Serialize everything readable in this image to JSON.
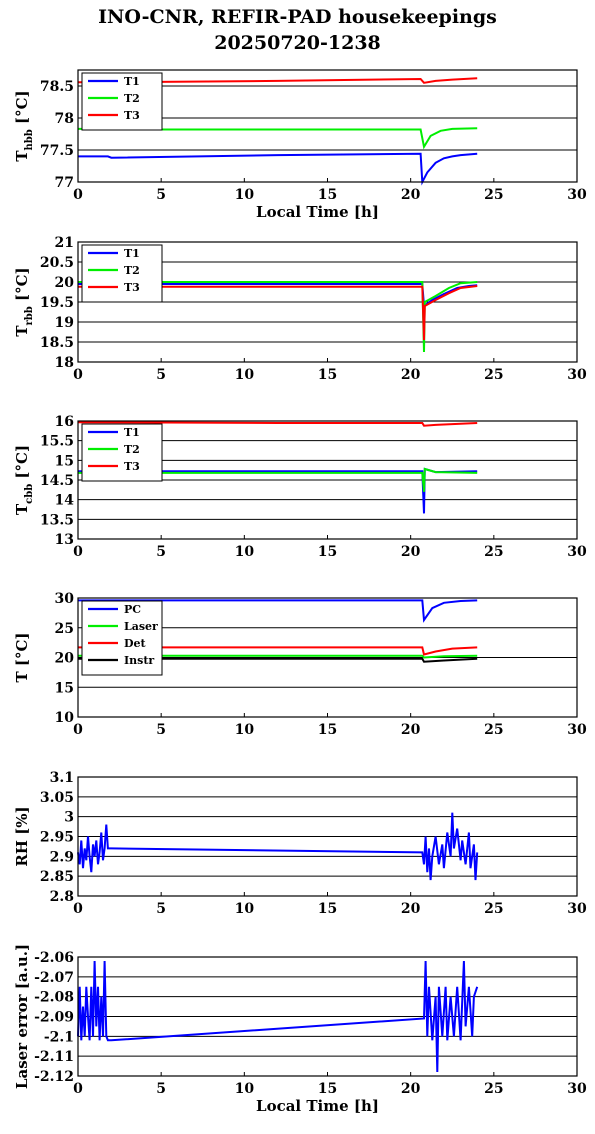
{
  "title_line1": "INO-CNR, REFIR-PAD housekeepings",
  "title_line2": "20250720-1238",
  "colors": {
    "blue": "#0000ff",
    "green": "#00ee00",
    "red": "#ff0000",
    "black": "#000000"
  },
  "chart_data": [
    {
      "type": "line",
      "ylabel": "T_hbb [°C]",
      "ylabel_main": "T",
      "ylabel_sub": "hbb",
      "ylabel_unit": "[°C]",
      "xlabel": "Local Time [h]",
      "xlim": [
        0,
        30
      ],
      "ylim": [
        77,
        78.75
      ],
      "xticks": [
        0,
        5,
        10,
        15,
        20,
        25,
        30
      ],
      "yticks": [
        77,
        77.5,
        78,
        78.5
      ],
      "ytick_labels": [
        "77",
        "77.5",
        "78",
        "78.5"
      ],
      "grid": true,
      "legend_position": "top-left",
      "series": [
        {
          "name": "T1",
          "color": "blue",
          "points": [
            [
              0,
              77.4
            ],
            [
              1.8,
              77.4
            ],
            [
              2,
              77.38
            ],
            [
              12,
              77.42
            ],
            [
              20.6,
              77.44
            ],
            [
              20.7,
              77.0
            ],
            [
              21,
              77.15
            ],
            [
              21.5,
              77.3
            ],
            [
              22,
              77.37
            ],
            [
              22.5,
              77.4
            ],
            [
              23,
              77.42
            ],
            [
              24,
              77.44
            ]
          ]
        },
        {
          "name": "T2",
          "color": "green",
          "points": [
            [
              0,
              77.83
            ],
            [
              1.8,
              77.83
            ],
            [
              2,
              77.82
            ],
            [
              12,
              77.82
            ],
            [
              20.6,
              77.82
            ],
            [
              20.8,
              77.55
            ],
            [
              21.2,
              77.72
            ],
            [
              21.8,
              77.8
            ],
            [
              22.5,
              77.83
            ],
            [
              24,
              77.84
            ]
          ]
        },
        {
          "name": "T3",
          "color": "red",
          "points": [
            [
              0,
              78.56
            ],
            [
              2,
              78.56
            ],
            [
              12,
              78.58
            ],
            [
              20.6,
              78.61
            ],
            [
              20.8,
              78.55
            ],
            [
              21.5,
              78.58
            ],
            [
              22.5,
              78.6
            ],
            [
              24,
              78.62
            ]
          ]
        }
      ]
    },
    {
      "type": "line",
      "ylabel": "T_rbb [°C]",
      "ylabel_main": "T",
      "ylabel_sub": "rbb",
      "ylabel_unit": "[°C]",
      "xlabel": "",
      "xlim": [
        0,
        30
      ],
      "ylim": [
        18,
        21
      ],
      "xticks": [
        0,
        5,
        10,
        15,
        20,
        25,
        30
      ],
      "yticks": [
        18,
        18.5,
        19,
        19.5,
        20,
        20.5,
        21
      ],
      "ytick_labels": [
        "18",
        "18.5",
        "19",
        "19.5",
        "20",
        "20.5",
        "21"
      ],
      "grid": true,
      "legend_position": "top-left",
      "series": [
        {
          "name": "T1",
          "color": "blue",
          "points": [
            [
              0,
              19.95
            ],
            [
              12,
              19.95
            ],
            [
              20.7,
              19.95
            ],
            [
              20.8,
              19.4
            ],
            [
              21.3,
              19.55
            ],
            [
              22,
              19.7
            ],
            [
              22.8,
              19.85
            ],
            [
              23.5,
              19.9
            ],
            [
              24,
              19.92
            ]
          ]
        },
        {
          "name": "T2",
          "color": "green",
          "points": [
            [
              0,
              20.0
            ],
            [
              12,
              20.0
            ],
            [
              20.7,
              20.0
            ],
            [
              20.8,
              18.25
            ],
            [
              20.85,
              19.5
            ],
            [
              21.5,
              19.65
            ],
            [
              22.3,
              19.85
            ],
            [
              23,
              19.97
            ],
            [
              24,
              20.0
            ]
          ]
        },
        {
          "name": "T3",
          "color": "red",
          "points": [
            [
              0,
              19.88
            ],
            [
              12,
              19.88
            ],
            [
              20.7,
              19.88
            ],
            [
              20.8,
              18.55
            ],
            [
              20.85,
              19.4
            ],
            [
              21.5,
              19.55
            ],
            [
              22.3,
              19.72
            ],
            [
              23,
              19.85
            ],
            [
              24,
              19.9
            ]
          ]
        }
      ]
    },
    {
      "type": "line",
      "ylabel": "T_cbb [°C]",
      "ylabel_main": "T",
      "ylabel_sub": "cbb",
      "ylabel_unit": "[°C]",
      "xlabel": "",
      "xlim": [
        0,
        30
      ],
      "ylim": [
        13,
        16
      ],
      "xticks": [
        0,
        5,
        10,
        15,
        20,
        25,
        30
      ],
      "yticks": [
        13,
        13.5,
        14,
        14.5,
        15,
        15.5,
        16
      ],
      "ytick_labels": [
        "13",
        "13.5",
        "14",
        "14.5",
        "15",
        "15.5",
        "16"
      ],
      "grid": true,
      "legend_position": "top-left",
      "series": [
        {
          "name": "T1",
          "color": "blue",
          "points": [
            [
              0,
              14.72
            ],
            [
              12,
              14.72
            ],
            [
              20.7,
              14.72
            ],
            [
              20.8,
              13.65
            ],
            [
              20.85,
              14.78
            ],
            [
              21.5,
              14.7
            ],
            [
              24,
              14.72
            ]
          ]
        },
        {
          "name": "T2",
          "color": "green",
          "points": [
            [
              0,
              14.68
            ],
            [
              12,
              14.68
            ],
            [
              20.7,
              14.68
            ],
            [
              20.8,
              14.2
            ],
            [
              20.85,
              14.78
            ],
            [
              21.5,
              14.7
            ],
            [
              24,
              14.68
            ]
          ]
        },
        {
          "name": "T3",
          "color": "red",
          "points": [
            [
              0,
              15.97
            ],
            [
              12,
              15.95
            ],
            [
              20.7,
              15.95
            ],
            [
              20.8,
              15.88
            ],
            [
              21.5,
              15.9
            ],
            [
              24,
              15.95
            ]
          ]
        }
      ]
    },
    {
      "type": "line",
      "ylabel": "T [°C]",
      "ylabel_main": "T",
      "ylabel_sub": "",
      "ylabel_unit": "[°C]",
      "xlabel": "",
      "xlim": [
        0,
        30
      ],
      "ylim": [
        10,
        30
      ],
      "xticks": [
        0,
        5,
        10,
        15,
        20,
        25,
        30
      ],
      "yticks": [
        10,
        15,
        20,
        25,
        30
      ],
      "ytick_labels": [
        "10",
        "15",
        "20",
        "25",
        "30"
      ],
      "grid": true,
      "legend_position": "top-left",
      "series": [
        {
          "name": "PC",
          "color": "blue",
          "points": [
            [
              0,
              29.6
            ],
            [
              12,
              29.6
            ],
            [
              20.7,
              29.6
            ],
            [
              20.8,
              26.3
            ],
            [
              21.3,
              28.3
            ],
            [
              22,
              29.2
            ],
            [
              23,
              29.5
            ],
            [
              24,
              29.6
            ]
          ]
        },
        {
          "name": "Laser",
          "color": "green",
          "points": [
            [
              0,
              20.3
            ],
            [
              12,
              20.3
            ],
            [
              20.7,
              20.3
            ],
            [
              20.8,
              20.0
            ],
            [
              22,
              20.2
            ],
            [
              24,
              20.3
            ]
          ]
        },
        {
          "name": "Det",
          "color": "red",
          "points": [
            [
              0,
              21.7
            ],
            [
              12,
              21.7
            ],
            [
              20.7,
              21.7
            ],
            [
              20.8,
              20.5
            ],
            [
              21.5,
              21.0
            ],
            [
              22.5,
              21.5
            ],
            [
              24,
              21.7
            ]
          ]
        },
        {
          "name": "Instr",
          "color": "black",
          "points": [
            [
              0,
              19.8
            ],
            [
              12,
              19.8
            ],
            [
              20.7,
              19.8
            ],
            [
              20.8,
              19.3
            ],
            [
              22,
              19.5
            ],
            [
              24,
              19.8
            ]
          ]
        }
      ]
    },
    {
      "type": "line",
      "ylabel": "RH [%]",
      "ylabel_main": "RH [%]",
      "ylabel_sub": "",
      "ylabel_unit": "",
      "xlabel": "",
      "xlim": [
        0,
        30
      ],
      "ylim": [
        2.8,
        3.1
      ],
      "xticks": [
        0,
        5,
        10,
        15,
        20,
        25,
        30
      ],
      "yticks": [
        2.8,
        2.85,
        2.9,
        2.95,
        3.0,
        3.05,
        3.1
      ],
      "ytick_labels": [
        "2.8",
        "2.85",
        "2.9",
        "2.95",
        "3",
        "3.05",
        "3.1"
      ],
      "grid": true,
      "legend_position": "",
      "series": [
        {
          "name": "",
          "color": "blue",
          "points": [
            [
              0,
              2.91
            ],
            [
              0.1,
              2.88
            ],
            [
              0.2,
              2.94
            ],
            [
              0.3,
              2.87
            ],
            [
              0.4,
              2.92
            ],
            [
              0.5,
              2.89
            ],
            [
              0.6,
              2.95
            ],
            [
              0.7,
              2.9
            ],
            [
              0.8,
              2.86
            ],
            [
              0.9,
              2.93
            ],
            [
              1.0,
              2.9
            ],
            [
              1.1,
              2.94
            ],
            [
              1.2,
              2.88
            ],
            [
              1.3,
              2.91
            ],
            [
              1.4,
              2.96
            ],
            [
              1.5,
              2.89
            ],
            [
              1.6,
              2.92
            ],
            [
              1.7,
              2.98
            ],
            [
              1.8,
              2.92
            ],
            [
              2,
              2.92
            ],
            [
              20.7,
              2.91
            ],
            [
              20.8,
              2.88
            ],
            [
              20.9,
              2.95
            ],
            [
              21.0,
              2.86
            ],
            [
              21.1,
              2.92
            ],
            [
              21.2,
              2.84
            ],
            [
              21.3,
              2.9
            ],
            [
              21.5,
              2.95
            ],
            [
              21.7,
              2.88
            ],
            [
              21.9,
              2.93
            ],
            [
              22.0,
              2.87
            ],
            [
              22.2,
              2.96
            ],
            [
              22.4,
              2.9
            ],
            [
              22.5,
              3.01
            ],
            [
              22.6,
              2.92
            ],
            [
              22.8,
              2.97
            ],
            [
              23.0,
              2.89
            ],
            [
              23.1,
              2.94
            ],
            [
              23.3,
              2.88
            ],
            [
              23.5,
              2.96
            ],
            [
              23.6,
              2.87
            ],
            [
              23.8,
              2.93
            ],
            [
              23.9,
              2.84
            ],
            [
              24,
              2.91
            ]
          ]
        }
      ]
    },
    {
      "type": "line",
      "ylabel": "Laser error [a.u.]",
      "ylabel_main": "Laser error [a.u.]",
      "ylabel_sub": "",
      "ylabel_unit": "",
      "xlabel": "Local Time [h]",
      "xlim": [
        0,
        30
      ],
      "ylim": [
        -2.12,
        -2.06
      ],
      "xticks": [
        0,
        5,
        10,
        15,
        20,
        25,
        30
      ],
      "yticks": [
        -2.12,
        -2.11,
        -2.1,
        -2.09,
        -2.08,
        -2.07,
        -2.06
      ],
      "ytick_labels": [
        "-2.12",
        "-2.11",
        "-2.1",
        "-2.09",
        "-2.08",
        "-2.07",
        "-2.06"
      ],
      "grid": true,
      "legend_position": "",
      "series": [
        {
          "name": "",
          "color": "blue",
          "points": [
            [
              0,
              -2.1
            ],
            [
              0.1,
              -2.075
            ],
            [
              0.2,
              -2.102
            ],
            [
              0.3,
              -2.085
            ],
            [
              0.4,
              -2.1
            ],
            [
              0.5,
              -2.075
            ],
            [
              0.6,
              -2.09
            ],
            [
              0.7,
              -2.102
            ],
            [
              0.8,
              -2.075
            ],
            [
              0.9,
              -2.1
            ],
            [
              1.0,
              -2.062
            ],
            [
              1.1,
              -2.095
            ],
            [
              1.2,
              -2.075
            ],
            [
              1.3,
              -2.102
            ],
            [
              1.4,
              -2.08
            ],
            [
              1.5,
              -2.1
            ],
            [
              1.6,
              -2.062
            ],
            [
              1.7,
              -2.1
            ],
            [
              1.8,
              -2.102
            ],
            [
              2,
              -2.102
            ],
            [
              20.8,
              -2.091
            ],
            [
              20.9,
              -2.062
            ],
            [
              21.0,
              -2.1
            ],
            [
              21.1,
              -2.075
            ],
            [
              21.3,
              -2.102
            ],
            [
              21.5,
              -2.08
            ],
            [
              21.6,
              -2.118
            ],
            [
              21.7,
              -2.075
            ],
            [
              21.9,
              -2.1
            ],
            [
              22.1,
              -2.075
            ],
            [
              22.2,
              -2.102
            ],
            [
              22.4,
              -2.08
            ],
            [
              22.6,
              -2.1
            ],
            [
              22.8,
              -2.075
            ],
            [
              23.0,
              -2.102
            ],
            [
              23.2,
              -2.062
            ],
            [
              23.3,
              -2.095
            ],
            [
              23.5,
              -2.075
            ],
            [
              23.7,
              -2.1
            ],
            [
              23.8,
              -2.08
            ],
            [
              24,
              -2.075
            ]
          ]
        }
      ]
    }
  ]
}
